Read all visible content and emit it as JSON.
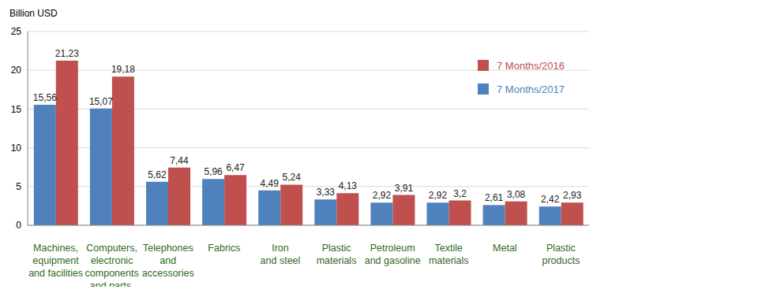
{
  "chart_data": {
    "type": "bar",
    "y_label": "Billion USD",
    "categories": [
      "Machines,\nequipment\nand facilities",
      "Computers,\nelectronic\ncomponents\nand parts.",
      "Telephones\nand\naccessories",
      "Fabrics",
      "Iron\nand steel",
      "Plastic\nmaterials",
      "Petroleum\nand gasoline",
      "Textile\nmaterials",
      "Metal",
      "Plastic\nproducts"
    ],
    "series": [
      {
        "name": "7 Months/2017",
        "color": "#4f81bd",
        "values": [
          15.56,
          15.07,
          5.62,
          5.96,
          4.49,
          3.33,
          2.92,
          2.92,
          2.61,
          2.42
        ],
        "value_labels": [
          "15,56",
          "15,07",
          "5,62",
          "5,96",
          "4,49",
          "3,33",
          "2,92",
          "2,92",
          "2,61",
          "2,42"
        ]
      },
      {
        "name": "7 Months/2016",
        "color": "#c0504d",
        "values": [
          21.23,
          19.18,
          7.44,
          6.47,
          5.24,
          4.13,
          3.91,
          3.2,
          3.08,
          2.93
        ],
        "value_labels": [
          "21,23",
          "19,18",
          "7,44",
          "6,47",
          "5,24",
          "4,13",
          "3,91",
          "3,2",
          "3,08",
          "2,93"
        ]
      }
    ],
    "ylim": [
      0,
      25
    ],
    "yticks": [
      0,
      5,
      10,
      15,
      20,
      25
    ],
    "grid": true,
    "legend": "upper right",
    "data_labels": true
  }
}
